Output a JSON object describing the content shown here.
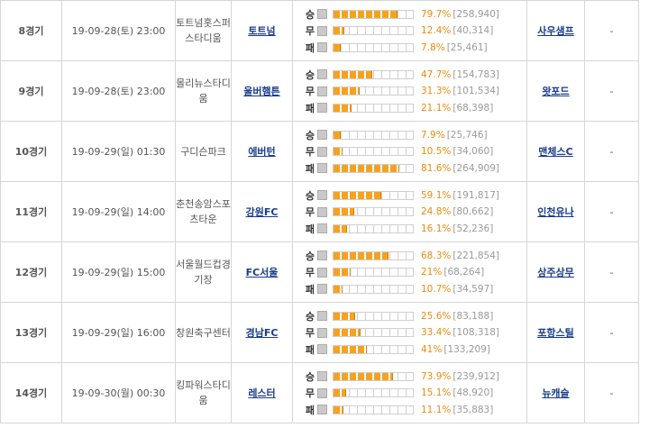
{
  "vote_labels": {
    "win": "승",
    "draw": "무",
    "lose": "패"
  },
  "matches": [
    {
      "round": "8경기",
      "datetime": "19-09-28(토) 23:00",
      "stadium": "토트넘홋스퍼스타디움",
      "home": "토트넘",
      "away": "사우샘프",
      "note": "-",
      "win": {
        "pct": "79.7%",
        "count": "[258,940]",
        "ratio": 0.797
      },
      "draw": {
        "pct": "12.4%",
        "count": "[40,314]",
        "ratio": 0.124
      },
      "lose": {
        "pct": "7.8%",
        "count": "[25,461]",
        "ratio": 0.078
      }
    },
    {
      "round": "9경기",
      "datetime": "19-09-28(토) 23:00",
      "stadium": "몰리뉴스타디움",
      "home": "울버햄튼",
      "away": "왓포드",
      "note": "-",
      "win": {
        "pct": "47.7%",
        "count": "[154,783]",
        "ratio": 0.477
      },
      "draw": {
        "pct": "31.3%",
        "count": "[101,534]",
        "ratio": 0.313
      },
      "lose": {
        "pct": "21.1%",
        "count": "[68,398]",
        "ratio": 0.211
      }
    },
    {
      "round": "10경기",
      "datetime": "19-09-29(일) 01:30",
      "stadium": "구디슨파크",
      "home": "에버턴",
      "away": "맨체스C",
      "note": "-",
      "win": {
        "pct": "7.9%",
        "count": "[25,746]",
        "ratio": 0.079
      },
      "draw": {
        "pct": "10.5%",
        "count": "[34,060]",
        "ratio": 0.105
      },
      "lose": {
        "pct": "81.6%",
        "count": "[264,909]",
        "ratio": 0.816
      }
    },
    {
      "round": "11경기",
      "datetime": "19-09-29(일) 14:00",
      "stadium": "춘천송암스포츠타운",
      "home": "강원FC",
      "away": "인천유나",
      "note": "-",
      "win": {
        "pct": "59.1%",
        "count": "[191,817]",
        "ratio": 0.591
      },
      "draw": {
        "pct": "24.8%",
        "count": "[80,662]",
        "ratio": 0.248
      },
      "lose": {
        "pct": "16.1%",
        "count": "[52,236]",
        "ratio": 0.161
      }
    },
    {
      "round": "12경기",
      "datetime": "19-09-29(일) 15:00",
      "stadium": "서울월드컵경기장",
      "home": "FC서울",
      "away": "상주상무",
      "note": "-",
      "win": {
        "pct": "68.3%",
        "count": "[221,854]",
        "ratio": 0.683
      },
      "draw": {
        "pct": "21%",
        "count": "[68,264]",
        "ratio": 0.21
      },
      "lose": {
        "pct": "10.7%",
        "count": "[34,597]",
        "ratio": 0.107
      }
    },
    {
      "round": "13경기",
      "datetime": "19-09-29(일) 16:00",
      "stadium": "창원축구센터",
      "home": "경남FC",
      "away": "포항스틸",
      "note": "-",
      "win": {
        "pct": "25.6%",
        "count": "[83,188]",
        "ratio": 0.256
      },
      "draw": {
        "pct": "33.4%",
        "count": "[108,318]",
        "ratio": 0.334
      },
      "lose": {
        "pct": "41%",
        "count": "[133,209]",
        "ratio": 0.41
      }
    },
    {
      "round": "14경기",
      "datetime": "19-09-30(월) 00:30",
      "stadium": "킹파워스타디움",
      "home": "레스터",
      "away": "뉴캐슬",
      "note": "-",
      "win": {
        "pct": "73.9%",
        "count": "[239,912]",
        "ratio": 0.739
      },
      "draw": {
        "pct": "15.1%",
        "count": "[48,920]",
        "ratio": 0.151
      },
      "lose": {
        "pct": "11.1%",
        "count": "[35,883]",
        "ratio": 0.111
      }
    }
  ]
}
